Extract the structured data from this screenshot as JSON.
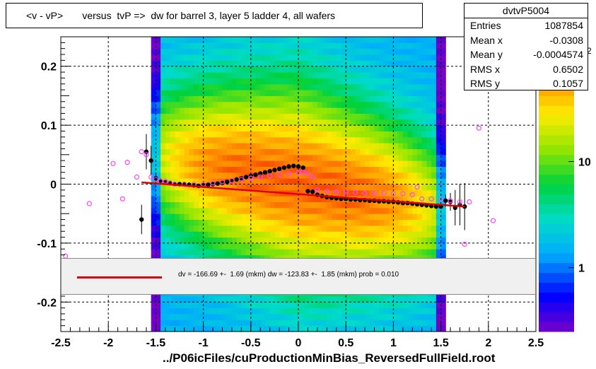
{
  "title": "<v - vP>       versus  tvP =>  dw for barrel 3, layer 5 ladder 4, all wafers",
  "x_axis_label": "../P06icFiles/cuProductionMinBias_ReversedFullField.root",
  "stats": {
    "name": "dvtvP5004",
    "rows": [
      {
        "label": "Entries",
        "value": "1087854"
      },
      {
        "label": "Mean x",
        "value": "-0.0308"
      },
      {
        "label": "Mean y",
        "value": "-0.0004574"
      },
      {
        "label": "RMS x",
        "value": "0.6502"
      },
      {
        "label": "RMS y",
        "value": "0.1057"
      }
    ]
  },
  "fit_legend": {
    "text": "dv = -166.69 +-  1.69 (mkm) dw = -123.83 +-  1.85 (mkm) prob = 0.010",
    "line_color": "#e00000"
  },
  "chart_data": {
    "type": "heatmap",
    "xlim": [
      -2.5,
      2.5
    ],
    "ylim": [
      -0.25,
      0.25
    ],
    "x_ticks": [
      -2.5,
      -2,
      -1.5,
      -1,
      -0.5,
      0,
      0.5,
      1,
      1.5,
      2,
      2.5
    ],
    "x_tick_labels": [
      "-2.5",
      "-2",
      "-1.5",
      "-1",
      "-0.5",
      "0",
      "0.5",
      "1",
      "1.5",
      "2",
      "2.5"
    ],
    "y_ticks": [
      -0.2,
      -0.1,
      0,
      0.1,
      0.2
    ],
    "y_tick_labels": [
      "-0.2",
      "-0.1",
      "0",
      "0.1",
      "0.2"
    ],
    "grid": true,
    "color_scale": {
      "type": "log",
      "range": [
        0.25,
        150
      ],
      "tick_values": [
        1,
        10
      ],
      "tick_labels": [
        "1",
        "10"
      ],
      "top_label_partial": "2"
    },
    "density_extent_x": [
      -1.55,
      1.55
    ],
    "density_core_slope": 0.03,
    "series": [
      {
        "kind": "profile-mean",
        "color": "#000000",
        "x": [
          -1.65,
          -1.6,
          -1.55,
          -1.5,
          -1.45,
          -1.4,
          -1.35,
          -1.3,
          -1.25,
          -1.2,
          -1.15,
          -1.1,
          -1.05,
          -1.0,
          -0.95,
          -0.9,
          -0.85,
          -0.8,
          -0.75,
          -0.7,
          -0.65,
          -0.6,
          -0.55,
          -0.5,
          -0.45,
          -0.4,
          -0.35,
          -0.3,
          -0.25,
          -0.2,
          -0.15,
          -0.1,
          -0.05,
          0.0,
          0.05,
          0.1,
          0.15,
          0.2,
          0.25,
          0.3,
          0.35,
          0.4,
          0.45,
          0.5,
          0.55,
          0.6,
          0.65,
          0.7,
          0.75,
          0.8,
          0.85,
          0.9,
          0.95,
          1.0,
          1.05,
          1.1,
          1.15,
          1.2,
          1.25,
          1.3,
          1.35,
          1.4,
          1.45,
          1.5,
          1.55,
          1.6,
          1.65,
          1.7,
          1.75
        ],
        "y": [
          -0.06,
          0.055,
          0.04,
          0.01,
          0.005,
          0.003,
          0.002,
          0.0,
          0.0,
          0.0,
          -0.001,
          -0.002,
          -0.003,
          -0.002,
          -0.001,
          0.0,
          0.001,
          0.002,
          0.004,
          0.006,
          0.008,
          0.01,
          0.012,
          0.014,
          0.016,
          0.018,
          0.02,
          0.022,
          0.024,
          0.026,
          0.028,
          0.03,
          0.031,
          0.03,
          0.028,
          -0.012,
          -0.013,
          -0.018,
          -0.02,
          -0.022,
          -0.023,
          -0.024,
          -0.025,
          -0.025,
          -0.026,
          -0.026,
          -0.027,
          -0.027,
          -0.028,
          -0.028,
          -0.029,
          -0.029,
          -0.03,
          -0.03,
          -0.031,
          -0.032,
          -0.032,
          -0.033,
          -0.034,
          -0.035,
          -0.036,
          -0.037,
          -0.038,
          -0.038,
          -0.028,
          -0.03,
          -0.04,
          -0.035,
          -0.038
        ],
        "yerr": [
          0.025,
          0.03,
          0.025,
          0.01,
          0.005,
          0.003,
          0.002,
          0.001,
          0.001,
          0.001,
          0.001,
          0.001,
          0.001,
          0.001,
          0.001,
          0.001,
          0.001,
          0.001,
          0.001,
          0.001,
          0.001,
          0.001,
          0.001,
          0.001,
          0.001,
          0.001,
          0.001,
          0.001,
          0.001,
          0.001,
          0.001,
          0.001,
          0.001,
          0.001,
          0.001,
          0.001,
          0.001,
          0.001,
          0.001,
          0.001,
          0.001,
          0.001,
          0.001,
          0.001,
          0.001,
          0.001,
          0.001,
          0.001,
          0.001,
          0.001,
          0.001,
          0.001,
          0.001,
          0.001,
          0.001,
          0.001,
          0.001,
          0.001,
          0.001,
          0.001,
          0.001,
          0.001,
          0.001,
          0.002,
          0.01,
          0.015,
          0.03,
          0.035,
          0.04
        ]
      },
      {
        "kind": "profile-alt",
        "color": "#ff44ff",
        "x": [
          -2.45,
          -2.2,
          -1.95,
          -1.85,
          -1.8,
          -1.7,
          -1.65,
          -1.6,
          -1.55,
          -1.5,
          -1.45,
          -1.4,
          -1.35,
          -1.3,
          -1.2,
          -1.1,
          -1.0,
          -0.9,
          -0.8,
          -0.7,
          -0.6,
          -0.5,
          -0.4,
          -0.3,
          -0.2,
          -0.1,
          0.0,
          0.05,
          0.1,
          0.15,
          0.2,
          0.3,
          0.4,
          0.5,
          0.6,
          0.7,
          0.8,
          0.9,
          1.0,
          1.1,
          1.2,
          1.25,
          1.3,
          1.4,
          1.5,
          1.6,
          1.7,
          1.75,
          1.8,
          1.9,
          2.05
        ],
        "y": [
          -0.122,
          -0.033,
          0.035,
          -0.025,
          0.037,
          0.012,
          0.055,
          0.05,
          0.012,
          0.008,
          0.005,
          0.005,
          0.002,
          0.0,
          0.0,
          0.0,
          0.0,
          0.002,
          0.004,
          0.006,
          0.008,
          0.01,
          0.012,
          0.014,
          0.016,
          0.018,
          0.02,
          0.02,
          0.018,
          0.012,
          -0.01,
          -0.012,
          -0.013,
          -0.014,
          -0.014,
          -0.015,
          -0.015,
          -0.015,
          -0.016,
          -0.016,
          -0.018,
          -0.005,
          -0.025,
          -0.025,
          -0.026,
          -0.028,
          -0.03,
          -0.102,
          -0.03,
          0.095,
          -0.062
        ]
      },
      {
        "kind": "fit",
        "color": "#e00000",
        "x": [
          -1.65,
          1.75
        ],
        "y": [
          0.003,
          -0.038
        ]
      }
    ]
  }
}
